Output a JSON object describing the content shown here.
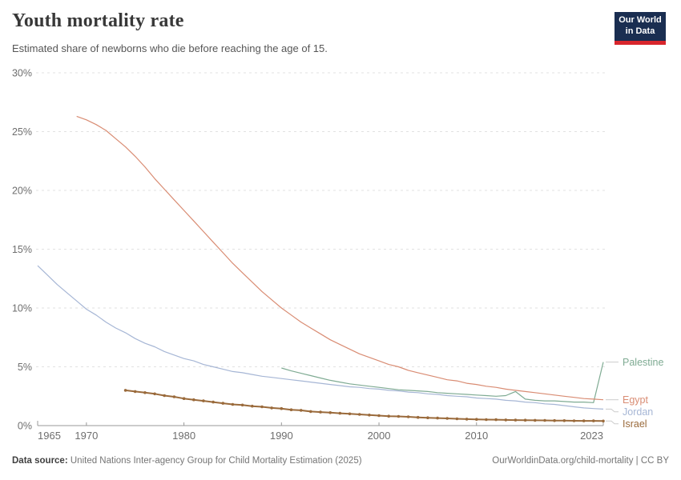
{
  "header": {
    "title": "Youth mortality rate",
    "subtitle": "Estimated share of newborns who die before reaching the age of 15.",
    "logo_line1": "Our World",
    "logo_line2": "in Data",
    "logo_bg": "#1a2e51",
    "logo_bar": "#d8262c"
  },
  "footer": {
    "source_label": "Data source:",
    "source_text": " United Nations Inter-agency Group for Child Mortality Estimation (2025)",
    "attribution": "OurWorldinData.org/child-mortality | CC BY"
  },
  "chart_data": {
    "type": "line",
    "title": "Youth mortality rate",
    "xlabel": "",
    "ylabel": "",
    "xlim": [
      1965,
      2023
    ],
    "ylim": [
      0,
      30
    ],
    "grid": "horizontal-dashed",
    "legend_position": "right-of-line-ends",
    "x_ticks": {
      "values": [
        1965,
        1970,
        1980,
        1990,
        2000,
        2010,
        2023
      ],
      "labels": [
        "1965",
        "1970",
        "1980",
        "1990",
        "2000",
        "2010",
        "2023"
      ]
    },
    "y_ticks": {
      "values": [
        0,
        5,
        10,
        15,
        20,
        25,
        30
      ],
      "labels": [
        "0%",
        "5%",
        "10%",
        "15%",
        "20%",
        "25%",
        "30%"
      ]
    },
    "colors": {
      "grid": "#e2e2e2",
      "axis": "#9a9a9a",
      "tick_text": "#6e6e6e",
      "connector": "#cccccc"
    },
    "series": [
      {
        "name": "Palestine",
        "color": "#7FAB93",
        "markers": false,
        "width": 1.2,
        "start_year": 1990,
        "values": [
          4.9,
          4.65,
          4.45,
          4.25,
          4.05,
          3.85,
          3.7,
          3.55,
          3.45,
          3.35,
          3.25,
          3.15,
          3.05,
          3.0,
          2.95,
          2.9,
          2.8,
          2.75,
          2.7,
          2.65,
          2.6,
          2.55,
          2.5,
          2.55,
          2.9,
          2.25,
          2.15,
          2.1,
          2.1,
          2.05,
          2.0,
          2.0,
          1.95,
          5.4
        ]
      },
      {
        "name": "Egypt",
        "color": "#D98C73",
        "markers": false,
        "width": 1.2,
        "start_year": 1969,
        "values": [
          26.3,
          26.0,
          25.6,
          25.1,
          24.4,
          23.7,
          22.9,
          22.0,
          21.0,
          20.1,
          19.2,
          18.3,
          17.4,
          16.5,
          15.6,
          14.7,
          13.8,
          13.0,
          12.2,
          11.4,
          10.7,
          10.0,
          9.4,
          8.8,
          8.3,
          7.8,
          7.3,
          6.9,
          6.5,
          6.1,
          5.8,
          5.5,
          5.2,
          5.0,
          4.7,
          4.5,
          4.3,
          4.1,
          3.9,
          3.8,
          3.6,
          3.5,
          3.35,
          3.25,
          3.1,
          3.0,
          2.9,
          2.8,
          2.7,
          2.6,
          2.5,
          2.4,
          2.3,
          2.25,
          2.2
        ]
      },
      {
        "name": "Jordan",
        "color": "#A6B6D5",
        "markers": false,
        "width": 1.2,
        "start_year": 1965,
        "values": [
          13.6,
          12.8,
          12.0,
          11.3,
          10.6,
          9.9,
          9.4,
          8.8,
          8.3,
          7.9,
          7.4,
          7.0,
          6.7,
          6.3,
          6.0,
          5.7,
          5.5,
          5.2,
          5.0,
          4.8,
          4.6,
          4.5,
          4.35,
          4.2,
          4.1,
          4.0,
          3.9,
          3.8,
          3.7,
          3.6,
          3.5,
          3.4,
          3.3,
          3.25,
          3.15,
          3.1,
          3.0,
          2.95,
          2.85,
          2.8,
          2.7,
          2.65,
          2.55,
          2.5,
          2.45,
          2.35,
          2.3,
          2.25,
          2.15,
          2.1,
          2.0,
          1.95,
          1.85,
          1.8,
          1.7,
          1.6,
          1.5,
          1.45,
          1.4
        ]
      },
      {
        "name": "Israel",
        "color": "#9A6A3B",
        "markers": true,
        "width": 2,
        "start_year": 1974,
        "values": [
          3.0,
          2.9,
          2.8,
          2.7,
          2.55,
          2.45,
          2.3,
          2.2,
          2.1,
          2.0,
          1.9,
          1.8,
          1.75,
          1.65,
          1.6,
          1.5,
          1.45,
          1.35,
          1.3,
          1.2,
          1.15,
          1.1,
          1.05,
          1.0,
          0.95,
          0.9,
          0.85,
          0.8,
          0.78,
          0.75,
          0.7,
          0.67,
          0.64,
          0.61,
          0.58,
          0.55,
          0.53,
          0.51,
          0.5,
          0.48,
          0.47,
          0.46,
          0.45,
          0.44,
          0.43,
          0.42,
          0.41,
          0.4,
          0.4,
          0.39
        ]
      }
    ]
  }
}
